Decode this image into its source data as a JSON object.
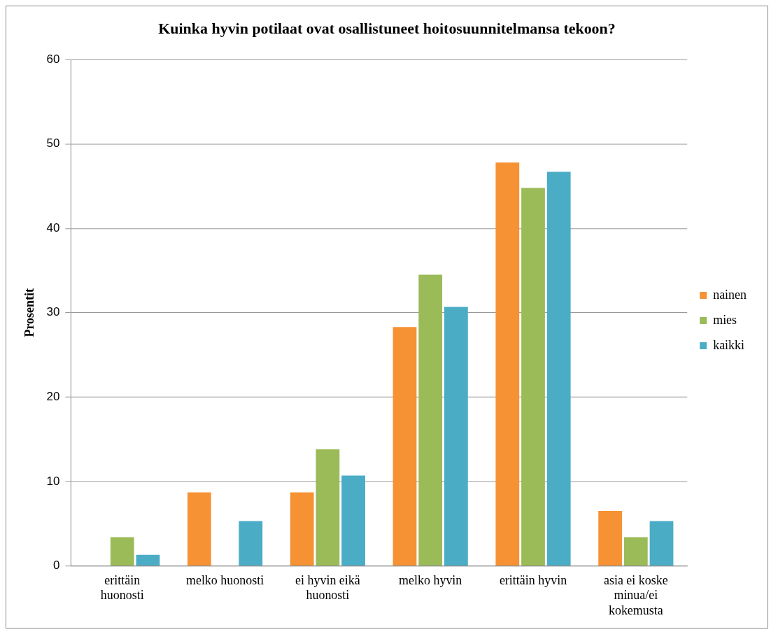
{
  "chart_data": {
    "type": "bar",
    "title": "Kuinka hyvin potilaat ovat osallistuneet hoitosuunnitelmansa tekoon?",
    "ylabel": "Prosentit",
    "categories": [
      "erittäin huonosti",
      "melko huonosti",
      "ei hyvin eikä huonosti",
      "melko hyvin",
      "erittäin hyvin",
      "asia ei koske minua/ei kokemusta"
    ],
    "series": [
      {
        "name": "nainen",
        "color": "#f79234",
        "values": [
          0,
          8.7,
          8.7,
          28.3,
          47.8,
          6.5
        ]
      },
      {
        "name": "mies",
        "color": "#9bbb59",
        "values": [
          3.4,
          0,
          13.8,
          34.5,
          44.8,
          3.4
        ]
      },
      {
        "name": "kaikki",
        "color": "#4bacc6",
        "values": [
          1.3,
          5.3,
          10.7,
          30.7,
          46.7,
          5.3
        ]
      }
    ],
    "ylim": [
      0,
      60
    ],
    "yticks": [
      0,
      10,
      20,
      30,
      40,
      50,
      60
    ],
    "grid": "y",
    "legend": "right"
  }
}
